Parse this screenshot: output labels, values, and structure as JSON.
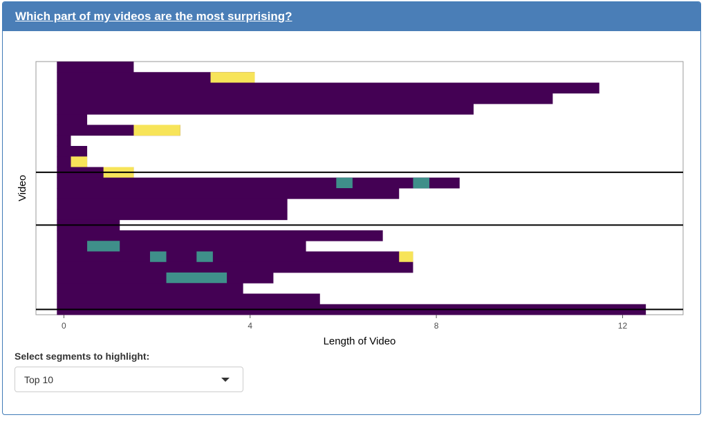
{
  "panel": {
    "title": "Which part of my videos are the most surprising?"
  },
  "controls": {
    "segments_label": "Select segments to highlight:",
    "segments_selected": "Top 10"
  },
  "colors": {
    "base": "#440154",
    "teal": "#3f8f8a",
    "yellow": "#f7e459",
    "separator": "#000000",
    "header": "#4a7eb7"
  },
  "chart_data": {
    "type": "heatmap",
    "xlabel": "Length of Video",
    "ylabel": "Video",
    "xlim": [
      -0.6,
      13.3
    ],
    "x_ticks": [
      0,
      4,
      8,
      12
    ],
    "row_count": 24,
    "grid": false,
    "separators_after_row": [
      10,
      15,
      23
    ],
    "videos": [
      {
        "length": 1.5,
        "segments": []
      },
      {
        "length": 4.1,
        "segments": [
          {
            "start": 3.15,
            "end": 4.1,
            "color": "yellow"
          }
        ]
      },
      {
        "length": 11.5,
        "segments": []
      },
      {
        "length": 10.5,
        "segments": []
      },
      {
        "length": 8.8,
        "segments": []
      },
      {
        "length": 0.5,
        "segments": []
      },
      {
        "length": 2.5,
        "segments": [
          {
            "start": 1.5,
            "end": 2.5,
            "color": "yellow"
          }
        ]
      },
      {
        "length": 0.15,
        "segments": []
      },
      {
        "length": 0.5,
        "segments": []
      },
      {
        "length": 0.5,
        "segments": [
          {
            "start": 0.15,
            "end": 0.5,
            "color": "yellow"
          }
        ]
      },
      {
        "length": 1.5,
        "segments": [
          {
            "start": 0.85,
            "end": 1.5,
            "color": "yellow"
          }
        ]
      },
      {
        "length": 8.5,
        "segments": [
          {
            "start": 5.85,
            "end": 6.2,
            "color": "teal"
          },
          {
            "start": 7.5,
            "end": 7.85,
            "color": "teal"
          }
        ]
      },
      {
        "length": 7.2,
        "segments": []
      },
      {
        "length": 4.8,
        "segments": []
      },
      {
        "length": 4.8,
        "segments": []
      },
      {
        "length": 1.2,
        "segments": []
      },
      {
        "length": 6.85,
        "segments": []
      },
      {
        "length": 5.2,
        "segments": [
          {
            "start": 0.5,
            "end": 1.2,
            "color": "teal"
          }
        ]
      },
      {
        "length": 7.5,
        "segments": [
          {
            "start": 1.85,
            "end": 2.2,
            "color": "teal"
          },
          {
            "start": 2.85,
            "end": 3.2,
            "color": "teal"
          },
          {
            "start": 7.2,
            "end": 7.5,
            "color": "yellow"
          }
        ]
      },
      {
        "length": 7.5,
        "segments": []
      },
      {
        "length": 4.5,
        "segments": [
          {
            "start": 2.2,
            "end": 3.5,
            "color": "teal"
          }
        ]
      },
      {
        "length": 3.85,
        "segments": []
      },
      {
        "length": 5.5,
        "segments": []
      },
      {
        "length": 12.5,
        "segments": []
      }
    ]
  }
}
